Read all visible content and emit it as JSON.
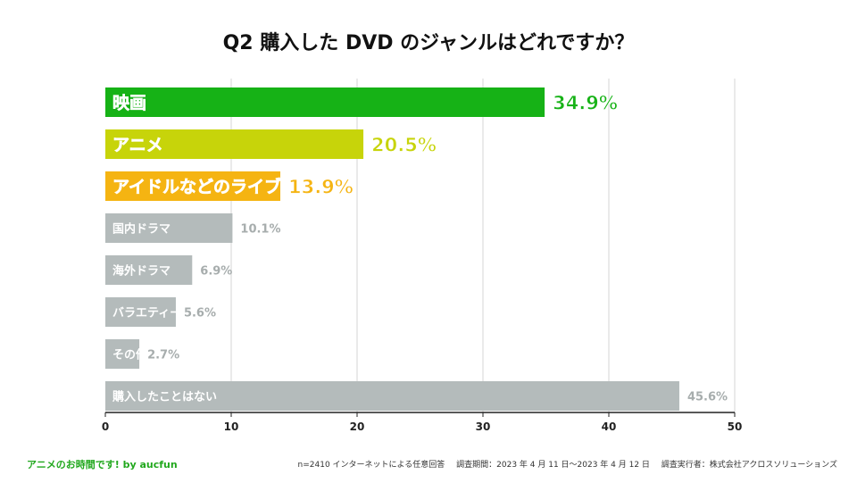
{
  "title": "Q2  購入した DVD のジャンルはどれですか？",
  "chart_data": {
    "type": "bar",
    "orientation": "horizontal",
    "categories": [
      "映画",
      "アニメ",
      "アイドルなどのライブ",
      "国内ドラマ",
      "海外ドラマ",
      "バラエティー",
      "その他",
      "購入したことはない"
    ],
    "values": [
      34.9,
      20.5,
      13.9,
      10.1,
      6.9,
      5.6,
      2.7,
      45.6
    ],
    "value_labels": [
      "34.9%",
      "20.5%",
      "13.9%",
      "10.1%",
      "6.9%",
      "5.6%",
      "2.7%",
      "45.6%"
    ],
    "colors": [
      "#16b216",
      "#c7d40a",
      "#f5b412",
      "#b4bbbb",
      "#b4bbbb",
      "#b4bbbb",
      "#b4bbbb",
      "#b4bbbb"
    ],
    "value_label_colors": [
      "#16b216",
      "#c7d40a",
      "#f5b412",
      "#a7adad",
      "#a7adad",
      "#a7adad",
      "#a7adad",
      "#a7adad"
    ],
    "highlighted": [
      true,
      true,
      true,
      false,
      false,
      false,
      false,
      false
    ],
    "xlim": [
      0,
      50
    ],
    "xticks": [
      0,
      10,
      20,
      30,
      40,
      50
    ],
    "grid": true,
    "legend": "none"
  },
  "footer": {
    "brand": "アニメのお時間です! by aucfun",
    "survey": "n=2410 インターネットによる任意回答",
    "period": "調査期間：2023 年 4 月 11 日〜2023 年 4 月 12 日",
    "executor": "調査実行者：株式会社アクロスソリューションズ"
  }
}
